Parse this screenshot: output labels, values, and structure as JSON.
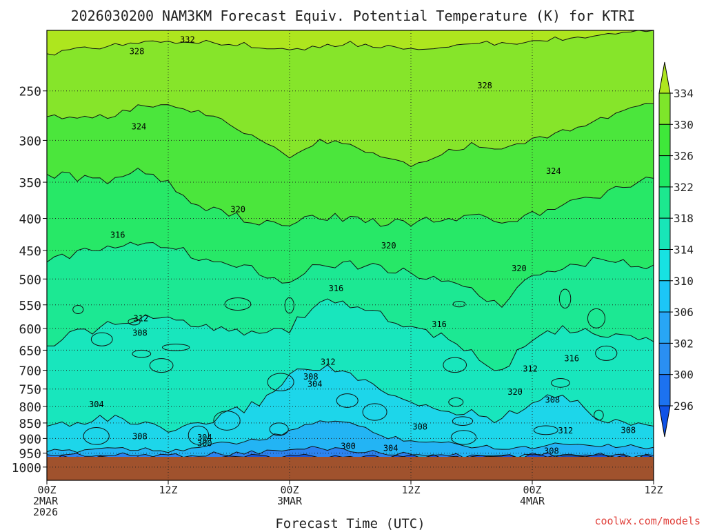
{
  "chart_data": {
    "type": "contour",
    "title": "2026030200 NAM3KM Forecast Equiv. Potential Temperature (K) for KTRI",
    "xlabel": "Forecast Time (UTC)",
    "ylabel": "",
    "y_axis": {
      "scale": "log-pressure",
      "reversed": true,
      "units": "hPa",
      "range": [
        1050,
        200
      ],
      "ticks": [
        250,
        300,
        350,
        400,
        450,
        500,
        550,
        600,
        650,
        700,
        750,
        800,
        850,
        900,
        950,
        1000
      ]
    },
    "x_axis": {
      "range_hours": [
        0,
        60
      ],
      "ticks": [
        {
          "hour": 0,
          "lines": [
            "00Z",
            "2MAR",
            "2026"
          ]
        },
        {
          "hour": 12,
          "lines": [
            "12Z"
          ]
        },
        {
          "hour": 24,
          "lines": [
            "00Z",
            "3MAR"
          ]
        },
        {
          "hour": 36,
          "lines": [
            "12Z"
          ]
        },
        {
          "hour": 48,
          "lines": [
            "00Z",
            "4MAR"
          ]
        },
        {
          "hour": 60,
          "lines": [
            "12Z"
          ]
        }
      ]
    },
    "colorbar": {
      "labels": [
        296,
        300,
        302,
        306,
        310,
        314,
        318,
        322,
        326,
        330,
        334
      ],
      "colors": [
        "#0f52e6",
        "#1c72f0",
        "#2a8ff2",
        "#28a6f5",
        "#1cc6f7",
        "#17e2e2",
        "#18e6b8",
        "#1ce88f",
        "#20e863",
        "#3fe83a",
        "#7ee62a",
        "#aee61e"
      ],
      "extend": "both"
    },
    "ground_color": "#a0522d",
    "ground_top_hpa": 963,
    "field_levels_k": [
      300,
      304,
      308,
      312,
      316,
      320,
      324,
      328,
      332
    ],
    "level_profile_hpa": [
      {
        "hour": 0,
        "levels": [
          965,
          955,
          945,
          860,
          640,
          470,
          340,
          275,
          218
        ]
      },
      {
        "hour": 3,
        "levels": [
          966,
          955,
          940,
          845,
          610,
          455,
          345,
          275,
          215
        ]
      },
      {
        "hour": 6,
        "levels": [
          967,
          958,
          930,
          835,
          595,
          440,
          350,
          275,
          212
        ]
      },
      {
        "hour": 9,
        "levels": [
          968,
          956,
          935,
          850,
          580,
          435,
          330,
          265,
          210
        ]
      },
      {
        "hour": 12,
        "levels": [
          968,
          957,
          940,
          880,
          580,
          445,
          350,
          262,
          208
        ]
      },
      {
        "hour": 15,
        "levels": [
          966,
          955,
          930,
          860,
          590,
          460,
          380,
          270,
          208
        ]
      },
      {
        "hour": 18,
        "levels": [
          966,
          952,
          915,
          820,
          600,
          470,
          395,
          282,
          210
        ]
      },
      {
        "hour": 21,
        "levels": [
          962,
          946,
          905,
          790,
          610,
          485,
          405,
          300,
          212
        ]
      },
      {
        "hour": 24,
        "levels": [
          960,
          940,
          880,
          710,
          600,
          505,
          410,
          320,
          215
        ]
      },
      {
        "hour": 27,
        "levels": [
          958,
          930,
          840,
          690,
          540,
          470,
          395,
          300,
          213
        ]
      },
      {
        "hour": 30,
        "levels": [
          960,
          940,
          850,
          710,
          550,
          475,
          400,
          305,
          210
        ]
      },
      {
        "hour": 33,
        "levels": [
          962,
          950,
          890,
          760,
          570,
          480,
          405,
          320,
          212
        ]
      },
      {
        "hour": 36,
        "levels": [
          962,
          955,
          905,
          790,
          600,
          490,
          405,
          330,
          214
        ]
      },
      {
        "hour": 39,
        "levels": [
          962,
          958,
          915,
          810,
          620,
          500,
          400,
          315,
          212
        ]
      },
      {
        "hour": 42,
        "levels": [
          963,
          960,
          925,
          820,
          660,
          520,
          395,
          305,
          210
        ]
      },
      {
        "hour": 45,
        "levels": [
          963,
          960,
          930,
          840,
          700,
          560,
          405,
          310,
          210
        ]
      },
      {
        "hour": 48,
        "levels": [
          962,
          955,
          930,
          780,
          620,
          490,
          395,
          300,
          208
        ]
      },
      {
        "hour": 51,
        "levels": [
          962,
          955,
          915,
          760,
          600,
          475,
          380,
          290,
          206
        ]
      },
      {
        "hour": 54,
        "levels": [
          963,
          958,
          920,
          830,
          610,
          470,
          370,
          280,
          205
        ]
      },
      {
        "hour": 57,
        "levels": [
          964,
          958,
          925,
          845,
          620,
          470,
          355,
          270,
          203
        ]
      },
      {
        "hour": 60,
        "levels": [
          965,
          958,
          930,
          860,
          630,
          475,
          345,
          262,
          200
        ]
      }
    ],
    "contour_labels": [
      {
        "text": "332",
        "hour": 13.9,
        "hpa": 207
      },
      {
        "text": "328",
        "hour": 8.9,
        "hpa": 216
      },
      {
        "text": "328",
        "hour": 43.3,
        "hpa": 245
      },
      {
        "text": "324",
        "hour": 9.1,
        "hpa": 285
      },
      {
        "text": "324",
        "hour": 50.1,
        "hpa": 336
      },
      {
        "text": "320",
        "hour": 18.9,
        "hpa": 387
      },
      {
        "text": "320",
        "hour": 33.8,
        "hpa": 442
      },
      {
        "text": "320",
        "hour": 46.7,
        "hpa": 481
      },
      {
        "text": "320",
        "hour": 46.3,
        "hpa": 758
      },
      {
        "text": "316",
        "hour": 7.0,
        "hpa": 425
      },
      {
        "text": "316",
        "hour": 28.6,
        "hpa": 518
      },
      {
        "text": "316",
        "hour": 38.8,
        "hpa": 591
      },
      {
        "text": "316",
        "hour": 51.9,
        "hpa": 670
      },
      {
        "text": "312",
        "hour": 9.3,
        "hpa": 578
      },
      {
        "text": "312",
        "hour": 27.8,
        "hpa": 679
      },
      {
        "text": "312",
        "hour": 47.8,
        "hpa": 696
      },
      {
        "text": "312",
        "hour": 51.3,
        "hpa": 874
      },
      {
        "text": "308",
        "hour": 9.2,
        "hpa": 610
      },
      {
        "text": "308",
        "hour": 26.1,
        "hpa": 717
      },
      {
        "text": "308",
        "hour": 50.0,
        "hpa": 781
      },
      {
        "text": "308",
        "hour": 36.9,
        "hpa": 862
      },
      {
        "text": "308",
        "hour": 9.2,
        "hpa": 893
      },
      {
        "text": "308",
        "hour": 57.5,
        "hpa": 873
      },
      {
        "text": "308",
        "hour": 49.9,
        "hpa": 943
      },
      {
        "text": "304",
        "hour": 4.9,
        "hpa": 794
      },
      {
        "text": "304",
        "hour": 26.5,
        "hpa": 736
      },
      {
        "text": "304",
        "hour": 15.6,
        "hpa": 897
      },
      {
        "text": "304",
        "hour": 34.0,
        "hpa": 933
      },
      {
        "text": "300",
        "hour": 15.6,
        "hpa": 917
      },
      {
        "text": "300",
        "hour": 29.8,
        "hpa": 926
      }
    ]
  },
  "credit": "coolwx.com/models"
}
